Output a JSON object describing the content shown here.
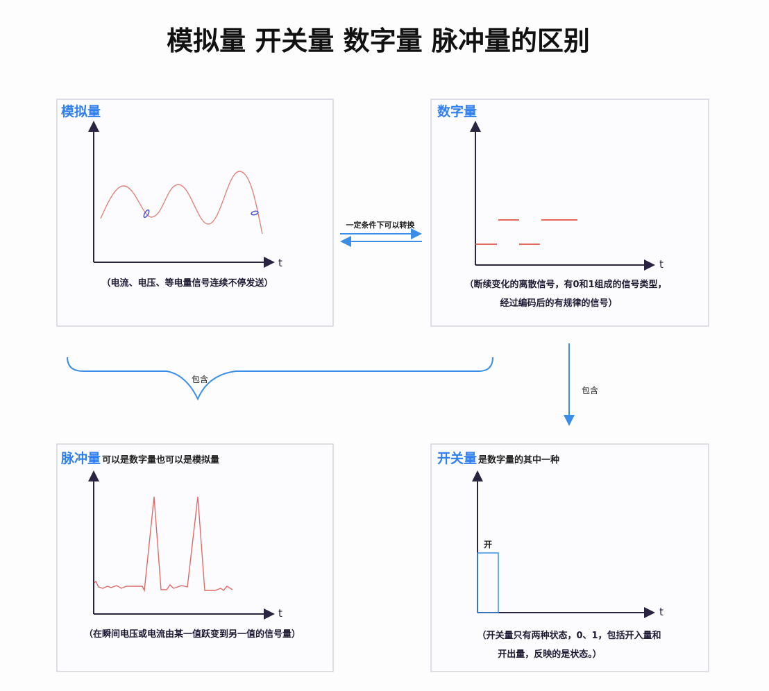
{
  "title": "模拟量 开关量 数字量 脉冲量的区别",
  "colors": {
    "accent": "#2f7ff0",
    "signal": "#e0847c",
    "connector": "#3a8ee8"
  },
  "analog": {
    "heading": "模拟量",
    "axis_label": "t",
    "caption": "（电流、电压、等电量信号连续不停发送）"
  },
  "digital": {
    "heading": "数字量",
    "axis_label": "t",
    "caption_line1": "（断续变化的离散信号，有0和1组成的信号类型，",
    "caption_line2": "经过编码后的有规律的信号）"
  },
  "pulse": {
    "heading": "脉冲量",
    "subheading": "可以是数字量也可以是模拟量",
    "axis_label": "t",
    "caption": "（在瞬间电压或电流由某一值跃变到另一值的信号量）"
  },
  "switch": {
    "heading": "开关量",
    "subheading": "是数字量的其中一种",
    "axis_label": "t",
    "on_label": "开",
    "caption_line1": "（开关量只有两种状态，0、1，包括开入量和",
    "caption_line2": "开出量，反映的是状态。）"
  },
  "connectors": {
    "convert_label": "一定条件下可以转换",
    "brace_label": "包含",
    "down_label": "包含"
  }
}
